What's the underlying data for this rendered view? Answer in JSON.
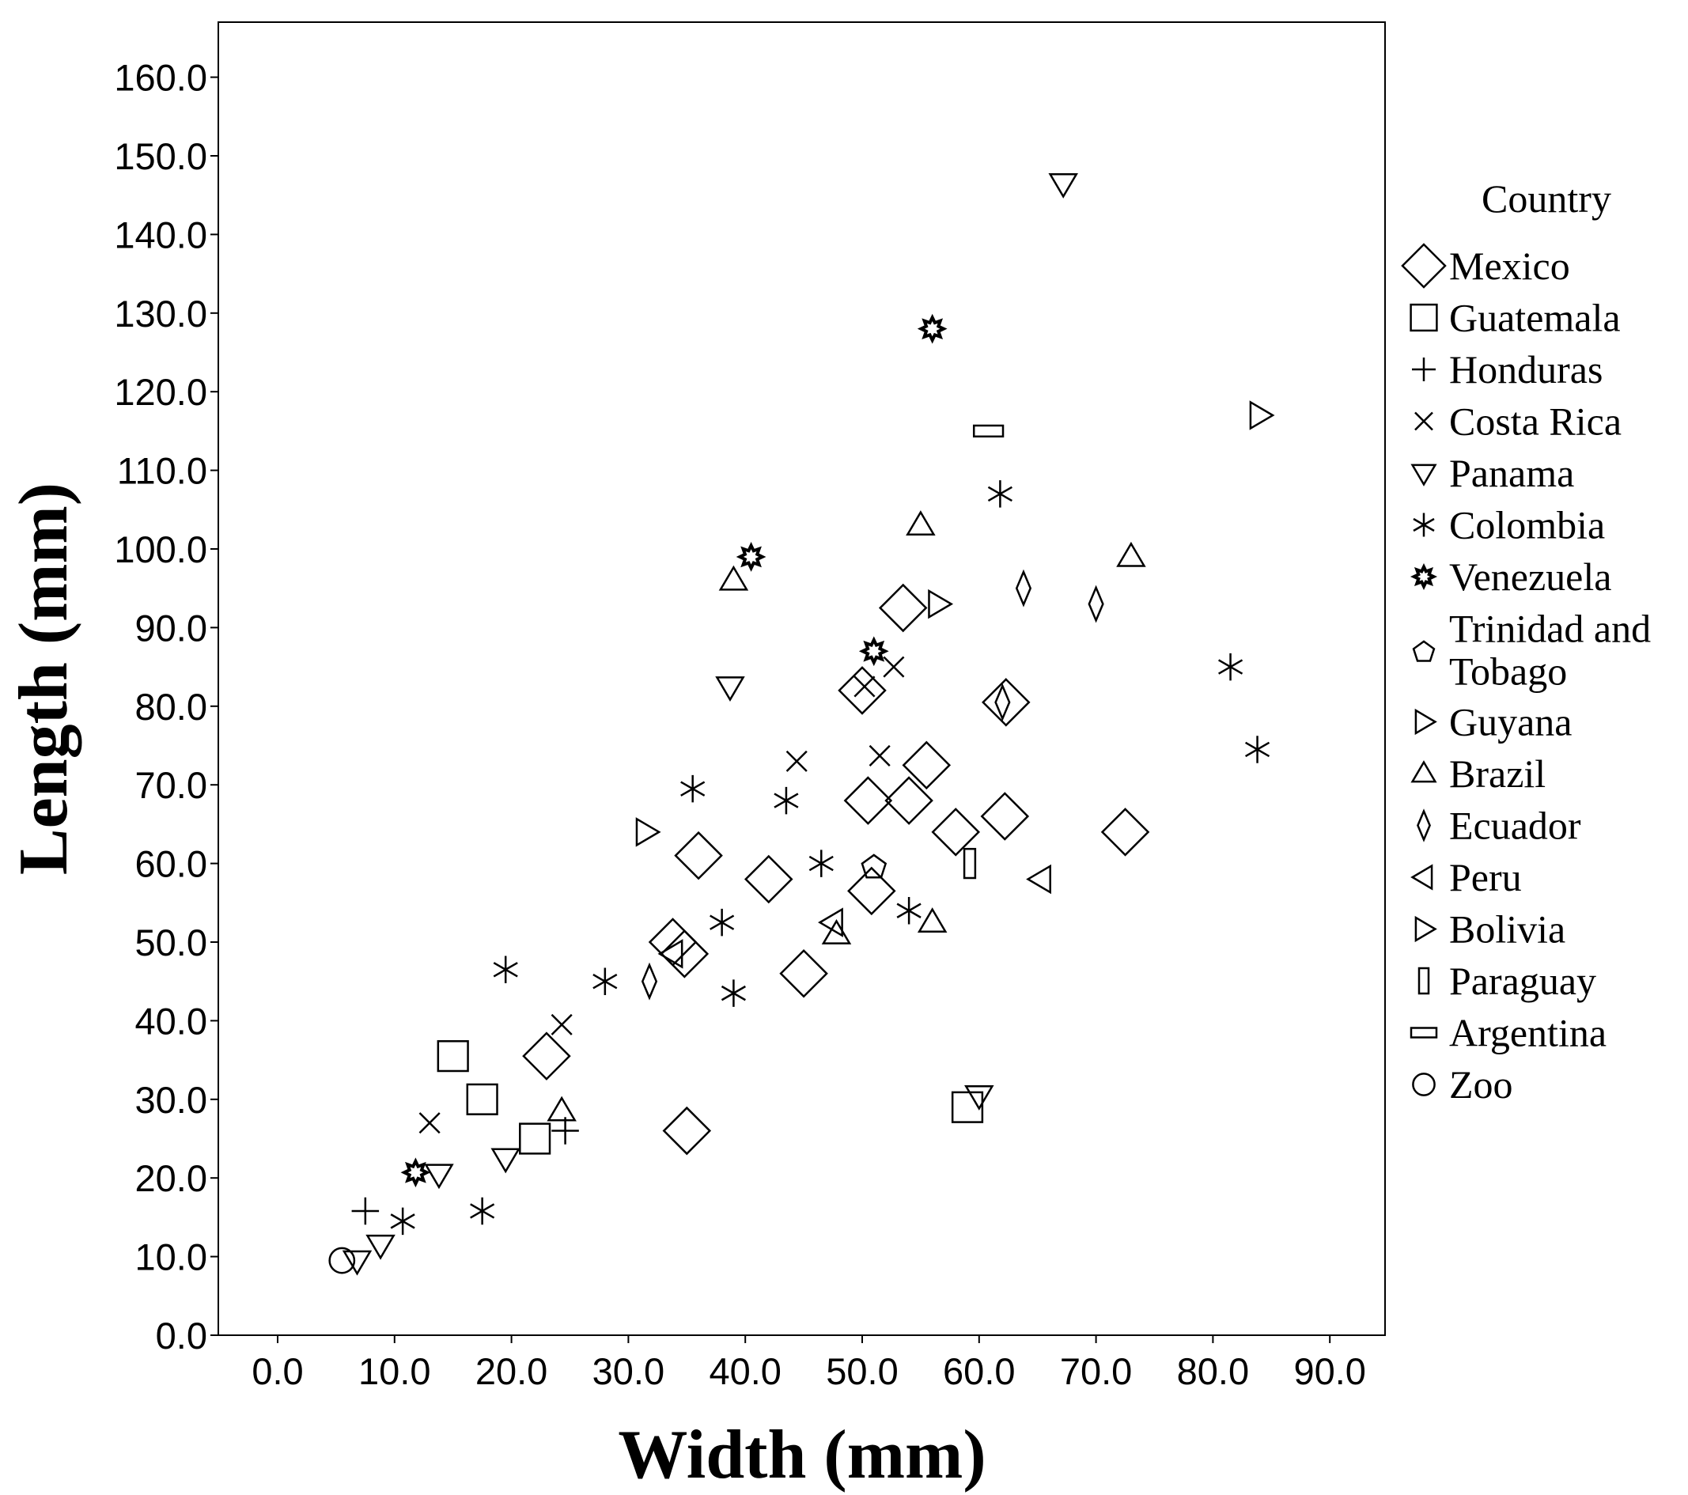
{
  "chart_data": {
    "type": "scatter",
    "title": "",
    "xlabel": "Width (mm)",
    "ylabel": "Length (mm)",
    "xlim": [
      -5,
      95
    ],
    "ylim": [
      0,
      167
    ],
    "x_ticks": [
      0,
      10,
      20,
      30,
      40,
      50,
      60,
      70,
      80,
      90
    ],
    "y_ticks": [
      0,
      10,
      20,
      30,
      40,
      50,
      60,
      70,
      80,
      90,
      100,
      110,
      120,
      130,
      140,
      150,
      160
    ],
    "x_tick_labels": [
      "0.0",
      "10.0",
      "20.0",
      "30.0",
      "40.0",
      "50.0",
      "60.0",
      "70.0",
      "80.0",
      "90.0"
    ],
    "y_tick_labels": [
      "0.0",
      "10.0",
      "20.0",
      "30.0",
      "40.0",
      "50.0",
      "60.0",
      "70.0",
      "80.0",
      "90.0",
      "100.0",
      "110.0",
      "120.0",
      "130.0",
      "140.0",
      "150.0",
      "160.0"
    ],
    "legend_title": "Country",
    "legend_position": "right",
    "grid": false,
    "series": [
      {
        "name": "Mexico",
        "marker": "diamond",
        "points": [
          [
            53.5,
            92.5
          ],
          [
            50,
            82
          ],
          [
            62.3,
            80.5
          ],
          [
            55.5,
            72.5
          ],
          [
            50.5,
            68
          ],
          [
            54,
            68
          ],
          [
            58,
            64
          ],
          [
            62.2,
            66
          ],
          [
            72.5,
            64
          ],
          [
            36,
            61
          ],
          [
            42,
            58
          ],
          [
            50.8,
            56.5
          ],
          [
            33.8,
            50
          ],
          [
            34.8,
            48.5
          ],
          [
            45,
            46
          ],
          [
            23,
            35.5
          ],
          [
            35,
            26
          ]
        ]
      },
      {
        "name": "Guatemala",
        "marker": "square",
        "points": [
          [
            15,
            35.5
          ],
          [
            17.5,
            30
          ],
          [
            22,
            25
          ],
          [
            59,
            29
          ]
        ]
      },
      {
        "name": "Honduras",
        "marker": "plus",
        "points": [
          [
            7.5,
            15.8
          ],
          [
            24.6,
            26
          ]
        ]
      },
      {
        "name": "Costa Rica",
        "marker": "x",
        "points": [
          [
            13,
            27
          ],
          [
            24.3,
            39.5
          ],
          [
            44.4,
            73
          ],
          [
            51.5,
            73.7
          ],
          [
            50.2,
            82.5
          ],
          [
            52.7,
            85
          ]
        ]
      },
      {
        "name": "Panama",
        "marker": "triangle-down",
        "points": [
          [
            67.2,
            146.5
          ],
          [
            38.7,
            82.5
          ],
          [
            60,
            30.5
          ],
          [
            19.5,
            22.5
          ],
          [
            13.8,
            20.5
          ],
          [
            8.8,
            11.5
          ],
          [
            6.8,
            9.5
          ]
        ]
      },
      {
        "name": "Colombia",
        "marker": "asterisk",
        "points": [
          [
            61.8,
            107
          ],
          [
            81.5,
            85
          ],
          [
            83.8,
            74.5
          ],
          [
            35.5,
            69.5
          ],
          [
            43.5,
            68
          ],
          [
            46.5,
            60
          ],
          [
            38,
            52.5
          ],
          [
            54,
            54
          ],
          [
            28,
            45
          ],
          [
            19.5,
            46.5
          ],
          [
            39,
            43.5
          ],
          [
            17.5,
            15.8
          ],
          [
            10.7,
            14.5
          ]
        ]
      },
      {
        "name": "Venezuela",
        "marker": "star",
        "points": [
          [
            56,
            128
          ],
          [
            40.5,
            99
          ],
          [
            51,
            87
          ],
          [
            11.8,
            20.7
          ]
        ]
      },
      {
        "name": "Trinidad and Tobago",
        "marker": "pentagon",
        "points": [
          [
            51,
            59.5
          ]
        ]
      },
      {
        "name": "Guyana",
        "marker": "triangle-right",
        "points": [
          [
            84,
            117
          ],
          [
            56.5,
            93
          ]
        ]
      },
      {
        "name": "Brazil",
        "marker": "triangle-up",
        "points": [
          [
            55,
            103
          ],
          [
            73,
            99
          ],
          [
            39,
            96
          ],
          [
            56,
            52.5
          ],
          [
            47.8,
            51
          ],
          [
            24.3,
            28.5
          ]
        ]
      },
      {
        "name": "Ecuador",
        "marker": "thin-diamond",
        "points": [
          [
            63.8,
            95
          ],
          [
            70,
            93
          ],
          [
            62,
            80.5
          ],
          [
            31.8,
            45
          ]
        ]
      },
      {
        "name": "Peru",
        "marker": "triangle-left",
        "points": [
          [
            65.3,
            58
          ],
          [
            47.5,
            52.5
          ],
          [
            33.8,
            48.5
          ]
        ]
      },
      {
        "name": "Bolivia",
        "marker": "triangle-right",
        "points": [
          [
            31.5,
            64
          ]
        ]
      },
      {
        "name": "Paraguay",
        "marker": "tall-rect",
        "points": [
          [
            59.2,
            60
          ]
        ]
      },
      {
        "name": "Argentina",
        "marker": "wide-rect",
        "points": [
          [
            60.8,
            115
          ]
        ]
      },
      {
        "name": "Zoo",
        "marker": "circle",
        "points": [
          [
            5.5,
            9.5
          ]
        ]
      }
    ]
  }
}
